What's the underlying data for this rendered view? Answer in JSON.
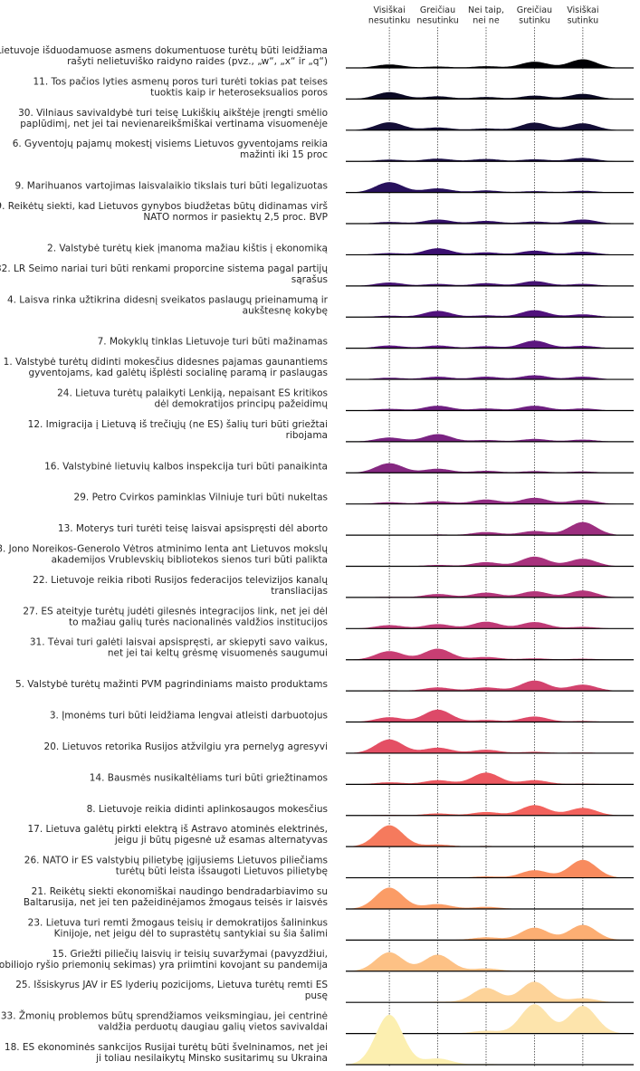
{
  "chart_data": {
    "type": "ridgeline",
    "x_categories": [
      [
        "Visiškai",
        "nesutinku"
      ],
      [
        "Greičiau",
        "nesutinku"
      ],
      [
        "Nei taip,",
        "nei ne"
      ],
      [
        "Greičiau",
        "sutinku"
      ],
      [
        "Visiškai",
        "sutinku"
      ]
    ],
    "x_values": [
      1,
      2,
      3,
      4,
      5
    ],
    "xlim": [
      0.1,
      6.05
    ],
    "grid": "dotted vertical at categories",
    "legend": "none",
    "colormap": "magma",
    "series": [
      {
        "label": [
          "10. Lietuvoje išduodamuose asmens dokumentuose turėtų būti leidžiama",
          "rašyti nelietuviško raidyno raides (pvz., „w“, „x“ ir „q“)"
        ],
        "color": "#000004",
        "density": [
          0.1,
          0.04,
          0.05,
          0.18,
          0.25
        ]
      },
      {
        "label": [
          "11. Tos pačios lyties asmenų poros turi turėti tokias pat teises",
          "tuoktis kaip ir heteroseksualios poros"
        ],
        "color": "#0b0924",
        "density": [
          0.2,
          0.08,
          0.06,
          0.1,
          0.15
        ]
      },
      {
        "label": [
          "30. Vilniaus savivaldybė turi teisę Lukiškių aikštėje įrengti smėlio",
          "paplūdimį, net jei tai nevienareikšmiškai vertinama visuomenėje"
        ],
        "color": "#140e36",
        "density": [
          0.23,
          0.08,
          0.05,
          0.22,
          0.2
        ]
      },
      {
        "label": [
          "6. Gyventojų pajamų mokestį visiems Lietuvos gyventojams reikia",
          "mažinti iki 15 proc"
        ],
        "color": "#1d1147",
        "density": [
          0.05,
          0.08,
          0.07,
          0.06,
          0.1
        ]
      },
      {
        "label": [
          "9. Marihuanos vartojimas laisvalaikio tikslais turi būti legalizuotas"
        ],
        "color": "#28115c",
        "density": [
          0.3,
          0.12,
          0.06,
          0.04,
          0.05
        ]
      },
      {
        "label": [
          "19. Reikėtų siekti, kad Lietuvos gynybos biudžetas būtų didinamas virš",
          "NATO normos ir pasiektų 2,5 proc. BVP"
        ],
        "color": "#331067",
        "density": [
          0.05,
          0.12,
          0.08,
          0.06,
          0.12
        ]
      },
      {
        "label": [
          "2. Valstybė turėtų kiek įmanoma mažiau kištis į ekonomiką"
        ],
        "color": "#3b0f70",
        "density": [
          0.05,
          0.19,
          0.07,
          0.12,
          0.09
        ]
      },
      {
        "label": [
          "32. LR Seimo nariai turi būti renkami proporcine sistema pagal partijų",
          "sąrašus"
        ],
        "color": "#461473",
        "density": [
          0.1,
          0.06,
          0.08,
          0.14,
          0.06
        ]
      },
      {
        "label": [
          "4. Laisva rinka užtikrina didesnį sveikatos paslaugų prieinamumą ir",
          "aukštesnę kokybę"
        ],
        "color": "#51127c",
        "density": [
          0.04,
          0.18,
          0.05,
          0.2,
          0.08
        ]
      },
      {
        "label": [
          "7. Mokyklų tinklas Lietuvoje turi būti mažinamas"
        ],
        "color": "#5c167f",
        "density": [
          0.08,
          0.08,
          0.06,
          0.22,
          0.07
        ]
      },
      {
        "label": [
          "1. Valstybė turėtų didinti mokesčius didesnes pajamas gaunantiems",
          "gyventojams, kad galėtų išplėsti socialinę paramą ir paslaugas"
        ],
        "color": "#641a80",
        "density": [
          0.05,
          0.08,
          0.08,
          0.12,
          0.08
        ]
      },
      {
        "label": [
          "24. Lietuva turėtų palaikyti Lenkiją, nepaisant ES kritikos",
          "dėl demokratijos principų pažeidimų"
        ],
        "color": "#6f1f81",
        "density": [
          0.05,
          0.14,
          0.06,
          0.14,
          0.06
        ]
      },
      {
        "label": [
          "12. Imigracija į Lietuvą iš trečiųjų (ne ES) šalių turi būti griežtai",
          "ribojama"
        ],
        "color": "#7a2382",
        "density": [
          0.12,
          0.22,
          0.05,
          0.08,
          0.06
        ]
      },
      {
        "label": [
          "16. Valstybinė lietuvių kalbos inspekcija turi būti panaikinta"
        ],
        "color": "#852881",
        "density": [
          0.28,
          0.12,
          0.06,
          0.05,
          0.04
        ]
      },
      {
        "label": [
          "29. Petro Cvirkos paminklas Vilniuje turi būti nukeltas"
        ],
        "color": "#912b81",
        "density": [
          0.05,
          0.08,
          0.13,
          0.18,
          0.12
        ]
      },
      {
        "label": [
          "13. Moterys turi turėti teisę laisvai apsispręsti dėl aborto"
        ],
        "color": "#9c2e7f",
        "density": [
          0.0,
          0.02,
          0.09,
          0.12,
          0.38
        ]
      },
      {
        "label": [
          "28. Jono Noreikos-Generolo Vėtros atminimo lenta ant Lietuvos mokslų",
          "akademijos Vrublevskių bibliotekos sienos turi būti palikta"
        ],
        "color": "#a8327d",
        "density": [
          0.0,
          0.04,
          0.12,
          0.28,
          0.22
        ]
      },
      {
        "label": [
          "22. Lietuvoje reikia riboti Rusijos federacijos televizijos kanalų",
          "transliacijas"
        ],
        "color": "#b3367a",
        "density": [
          0.02,
          0.1,
          0.14,
          0.18,
          0.2
        ]
      },
      {
        "label": [
          "27. ES ateityje turėtų judėti gilesnės integracijos link, net jei dėl",
          "to mažiau galių turės nacionalinės valdžios institucijos"
        ],
        "color": "#bf3a76",
        "density": [
          0.1,
          0.13,
          0.2,
          0.19,
          0.05
        ]
      },
      {
        "label": [
          "31. Tėvai turi galėti laisvai apsispręsti, ar skiepyti savo vaikus,",
          "net jei tai keltų grėsmę visuomenės saugumui"
        ],
        "color": "#c83e73",
        "density": [
          0.25,
          0.32,
          0.08,
          0.04,
          0.03
        ]
      },
      {
        "label": [
          "5. Valstybė turėtų mažinti PVM pagrindiniams maisto produktams"
        ],
        "color": "#d3436e",
        "density": [
          0.02,
          0.1,
          0.1,
          0.3,
          0.18
        ]
      },
      {
        "label": [
          "3. Įmonėms turi būti leidžiama lengvai atleisti darbuotojus"
        ],
        "color": "#dd4968",
        "density": [
          0.14,
          0.36,
          0.06,
          0.16,
          0.03
        ]
      },
      {
        "label": [
          "20. Lietuvos retorika Rusijos atžvilgiu yra pernelyg agresyvi"
        ],
        "color": "#e44f64",
        "density": [
          0.4,
          0.16,
          0.1,
          0.04,
          0.02
        ]
      },
      {
        "label": [
          "14. Bausmės nusikaltėliams turi būti griežtinamos"
        ],
        "color": "#ec5860",
        "density": [
          0.06,
          0.12,
          0.34,
          0.12,
          0.02
        ]
      },
      {
        "label": [
          "8. Lietuvoje reikia didinti aplinkosaugos mokesčius"
        ],
        "color": "#f2625d",
        "density": [
          0.02,
          0.06,
          0.1,
          0.3,
          0.22
        ]
      },
      {
        "label": [
          "17. Lietuva galėtų pirkti elektrą iš Astravo atominės elektrinės,",
          "jeigu ji būtų pigesnė už esamas alternatyvas"
        ],
        "color": "#f57a5d",
        "density": [
          0.62,
          0.06,
          0.02,
          0.01,
          0.01
        ]
      },
      {
        "label": [
          "26. NATO ir ES valstybių pilietybę įgijusiems Lietuvos piliečiams",
          "turėtų būti leista išsaugoti Lietuvos pilietybę"
        ],
        "color": "#f88b5e",
        "density": [
          0.0,
          0.0,
          0.04,
          0.22,
          0.52
        ]
      },
      {
        "label": [
          "21. Reikėtų siekti ekonomiškai naudingo bendradarbiavimo su",
          "Baltarusija, net jei ten pažeidinėjamos žmogaus teisės ir laisvės"
        ],
        "color": "#fb9c66",
        "density": [
          0.62,
          0.14,
          0.06,
          0.01,
          0.01
        ]
      },
      {
        "label": [
          "23. Lietuva turi remti žmogaus teisių ir demokratijos šalininkus",
          "Kinijoje, net jeigu dėl to suprastėtų santykiai su šia šalimi"
        ],
        "color": "#fcae73",
        "density": [
          0.0,
          0.01,
          0.08,
          0.36,
          0.44
        ]
      },
      {
        "label": [
          "15. Griežti piliečių laisvių ir teisių suvaržymai (pavyzdžiui,",
          "mobiliojo ryšio priemonių sekimas) yra priimtini kovojant su pandemija"
        ],
        "color": "#fdc185",
        "density": [
          0.55,
          0.48,
          0.08,
          0.02,
          0.01
        ]
      },
      {
        "label": [
          "25. Išsiskyrus JAV ir ES lyderių pozicijoms, Lietuva turėtų remti ES",
          "pusę"
        ],
        "color": "#fdd399",
        "density": [
          0.0,
          0.02,
          0.42,
          0.6,
          0.12
        ]
      },
      {
        "label": [
          "33. Žmonių problemos būtų sprendžiamos veiksmingiau, jei centrinė",
          "valdžia perduotų daugiau galių vietos savivaldai"
        ],
        "color": "#fde4ac",
        "density": [
          0.0,
          0.0,
          0.08,
          0.85,
          0.8
        ]
      },
      {
        "label": [
          "18. ES ekonominės sankcijos Rusijai turėtų būti švelninamos, net jei",
          "ji toliau nesilaikytų Minsko susitarimų su Ukraina"
        ],
        "color": "#fcefb0",
        "density": [
          1.45,
          0.18,
          0.02,
          0.0,
          0.0
        ]
      }
    ]
  }
}
